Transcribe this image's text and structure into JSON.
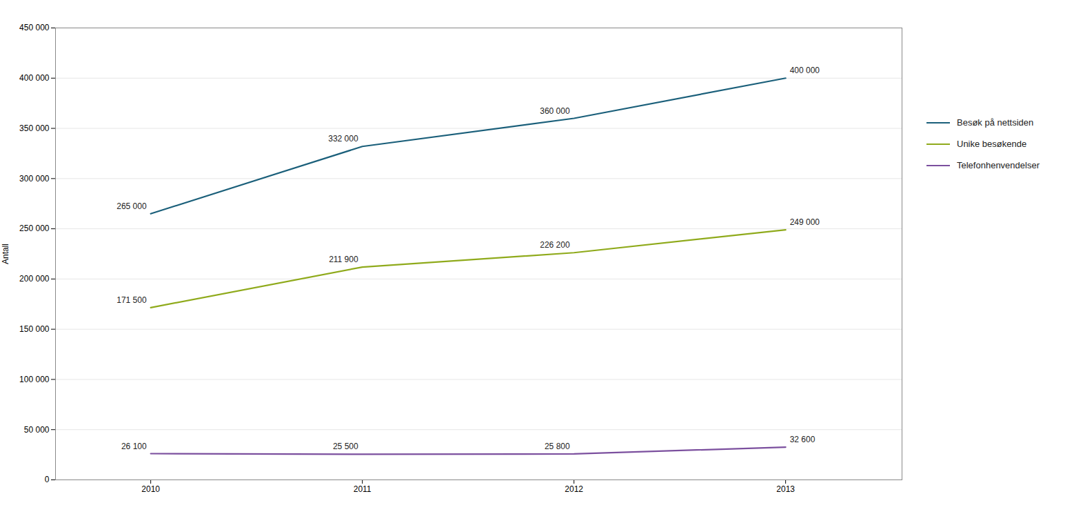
{
  "chart_data": {
    "type": "line",
    "x": [
      2010,
      2011,
      2012,
      2013
    ],
    "xlim": [
      2009.55,
      2013.55
    ],
    "xticks": [
      2010,
      2011,
      2012,
      2013
    ],
    "ylabel": "Antall",
    "ylim": [
      0,
      450000
    ],
    "yticks": [
      0,
      {
        "value": 50000,
        "label": "50 000"
      },
      {
        "value": 100000,
        "label": "100 000"
      },
      {
        "value": 150000,
        "label": "150 000"
      },
      {
        "value": 200000,
        "label": "200 000"
      },
      {
        "value": 250000,
        "label": "250 000"
      },
      {
        "value": 300000,
        "label": "300 000"
      },
      {
        "value": 350000,
        "label": "350 000"
      },
      {
        "value": 400000,
        "label": "400 000"
      },
      {
        "value": 450000,
        "label": "450 000"
      }
    ],
    "grid": true,
    "legend": "right",
    "data_labels": true,
    "series": [
      {
        "name": "Besøk på nettsiden",
        "color": "#1a5f7a",
        "values": [
          265000,
          332000,
          360000,
          400000
        ],
        "value_labels": [
          "265 000",
          "332 000",
          "360 000",
          "400 000"
        ]
      },
      {
        "name": "Unike besøkende",
        "color": "#8faa1b",
        "values": [
          171500,
          211900,
          226200,
          249000
        ],
        "value_labels": [
          "171 500",
          "211 900",
          "226 200",
          "249 000"
        ]
      },
      {
        "name": "Telefonhenvendelser",
        "color": "#7b4f9e",
        "values": [
          26100,
          25500,
          25800,
          32600
        ],
        "value_labels": [
          "26 100",
          "25 500",
          "25 800",
          "32 600"
        ]
      }
    ]
  }
}
